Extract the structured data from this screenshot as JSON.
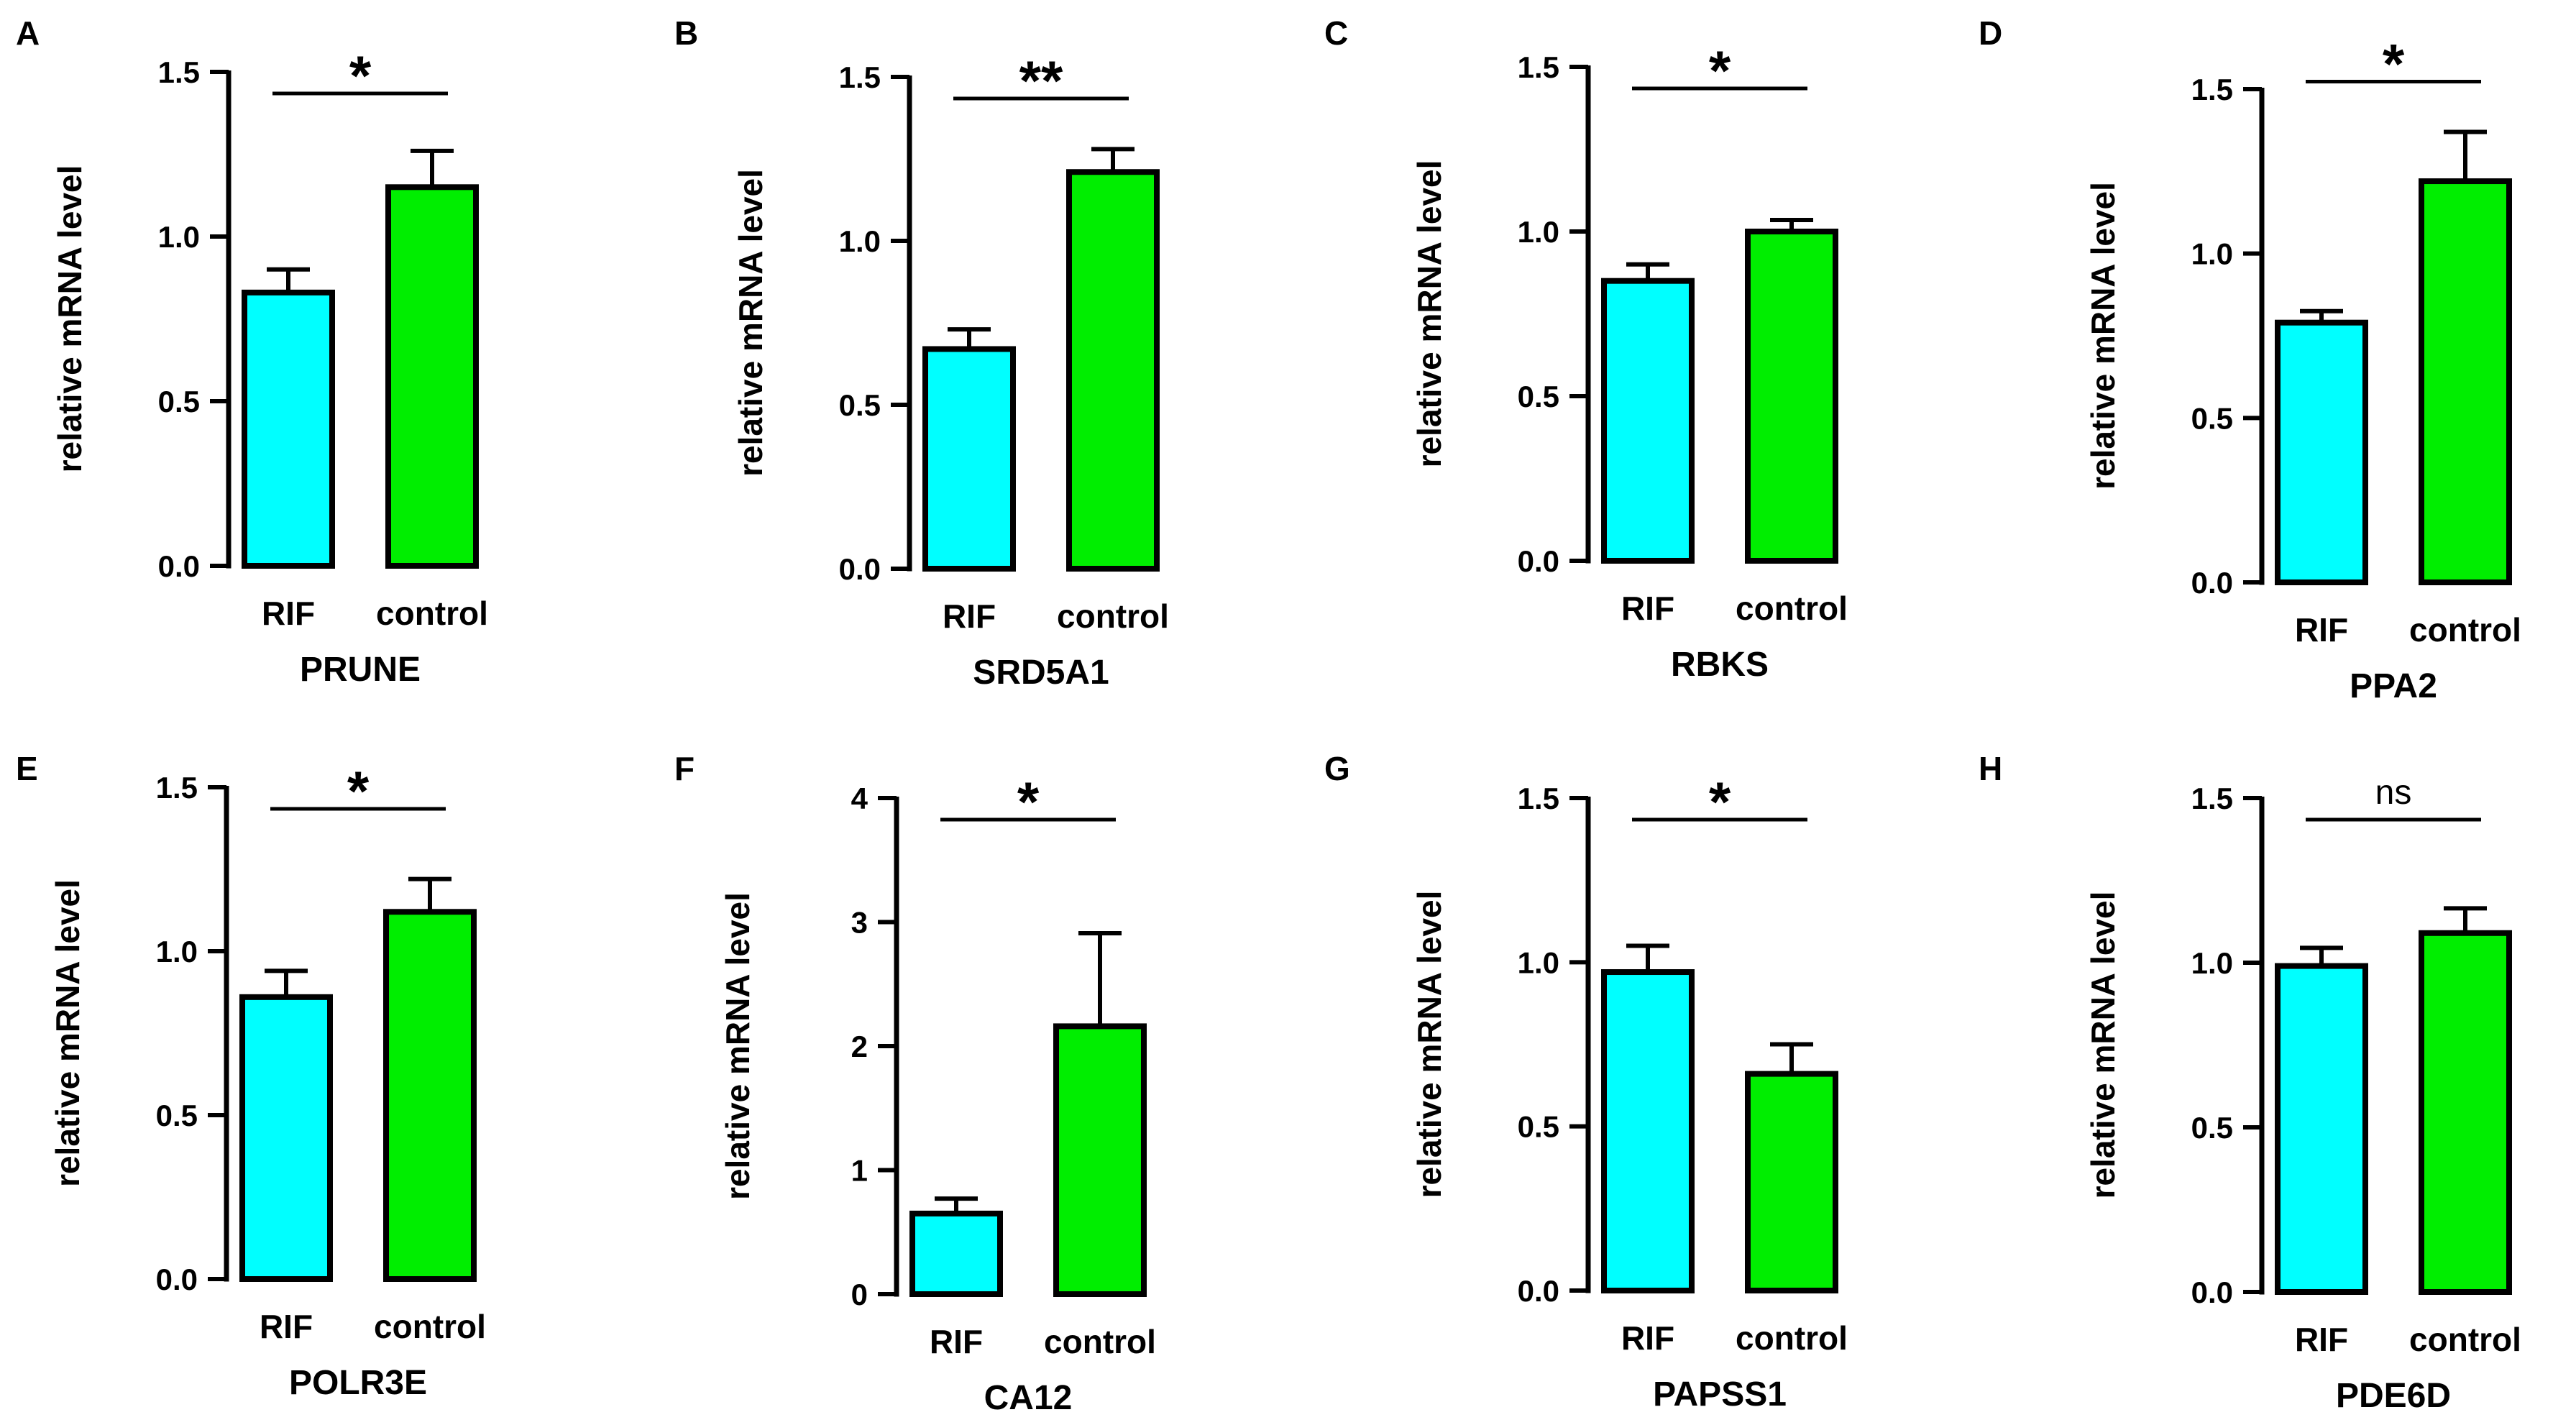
{
  "colors": {
    "RIF": "#00ffff",
    "control": "#00ee00",
    "stroke": "#000000"
  },
  "chart_data": [
    {
      "type": "bar",
      "panel": "A",
      "title": "PRUNE",
      "xlabel": "PRUNE",
      "ylabel": "relative mRNA level",
      "categories": [
        "RIF",
        "control"
      ],
      "values": [
        0.83,
        1.15
      ],
      "errors": [
        0.07,
        0.11
      ],
      "ylim": [
        0,
        1.5
      ],
      "yticks": [
        0.0,
        0.5,
        1.0,
        1.5
      ],
      "ytick_labels": [
        "0.0",
        "0.5",
        "1.0",
        "1.5"
      ],
      "significance": "*"
    },
    {
      "type": "bar",
      "panel": "B",
      "title": "SRD5A1",
      "xlabel": "SRD5A1",
      "ylabel": "relative mRNA level",
      "categories": [
        "RIF",
        "control"
      ],
      "values": [
        0.67,
        1.21
      ],
      "errors": [
        0.06,
        0.07
      ],
      "ylim": [
        0,
        1.5
      ],
      "yticks": [
        0.0,
        0.5,
        1.0,
        1.5
      ],
      "ytick_labels": [
        "0.0",
        "0.5",
        "1.0",
        "1.5"
      ],
      "significance": "**"
    },
    {
      "type": "bar",
      "panel": "C",
      "title": "RBKS",
      "xlabel": "RBKS",
      "ylabel": "relative mRNA level",
      "categories": [
        "RIF",
        "control"
      ],
      "values": [
        0.85,
        1.0
      ],
      "errors": [
        0.05,
        0.035
      ],
      "ylim": [
        0,
        1.5
      ],
      "yticks": [
        0.0,
        0.5,
        1.0,
        1.5
      ],
      "ytick_labels": [
        "0.0",
        "0.5",
        "1.0",
        "1.5"
      ],
      "significance": "*"
    },
    {
      "type": "bar",
      "panel": "D",
      "title": "PPA2",
      "xlabel": "PPA2",
      "ylabel": "relative mRNA level",
      "categories": [
        "RIF",
        "control"
      ],
      "values": [
        0.79,
        1.22
      ],
      "errors": [
        0.035,
        0.15
      ],
      "ylim": [
        0,
        1.5
      ],
      "yticks": [
        0.0,
        0.5,
        1.0,
        1.5
      ],
      "ytick_labels": [
        "0.0",
        "0.5",
        "1.0",
        "1.5"
      ],
      "significance": "*"
    },
    {
      "type": "bar",
      "panel": "E",
      "title": "POLR3E",
      "xlabel": "POLR3E",
      "ylabel": "relative mRNA level",
      "categories": [
        "RIF",
        "control"
      ],
      "values": [
        0.86,
        1.12
      ],
      "errors": [
        0.08,
        0.1
      ],
      "ylim": [
        0,
        1.5
      ],
      "yticks": [
        0.0,
        0.5,
        1.0,
        1.5
      ],
      "ytick_labels": [
        "0.0",
        "0.5",
        "1.0",
        "1.5"
      ],
      "significance": "*"
    },
    {
      "type": "bar",
      "panel": "F",
      "title": "CA12",
      "xlabel": "CA12",
      "ylabel": "relative mRNA level",
      "categories": [
        "RIF",
        "control"
      ],
      "values": [
        0.65,
        2.16
      ],
      "errors": [
        0.12,
        0.75
      ],
      "ylim": [
        0,
        4
      ],
      "yticks": [
        0,
        1,
        2,
        3,
        4
      ],
      "ytick_labels": [
        "0",
        "1",
        "2",
        "3",
        "4"
      ],
      "significance": "*"
    },
    {
      "type": "bar",
      "panel": "G",
      "title": "PAPSS1",
      "xlabel": "PAPSS1",
      "ylabel": "relative mRNA level",
      "categories": [
        "RIF",
        "control"
      ],
      "values": [
        0.97,
        0.66
      ],
      "errors": [
        0.08,
        0.09
      ],
      "ylim": [
        0,
        1.5
      ],
      "yticks": [
        0.0,
        0.5,
        1.0,
        1.5
      ],
      "ytick_labels": [
        "0.0",
        "0.5",
        "1.0",
        "1.5"
      ],
      "significance": "*"
    },
    {
      "type": "bar",
      "panel": "H",
      "title": "PDE6D",
      "xlabel": "PDE6D",
      "ylabel": "relative mRNA level",
      "categories": [
        "RIF",
        "control"
      ],
      "values": [
        0.99,
        1.09
      ],
      "errors": [
        0.055,
        0.075
      ],
      "ylim": [
        0,
        1.5
      ],
      "yticks": [
        0.0,
        0.5,
        1.0,
        1.5
      ],
      "ytick_labels": [
        "0.0",
        "0.5",
        "1.0",
        "1.5"
      ],
      "significance": "ns"
    }
  ]
}
